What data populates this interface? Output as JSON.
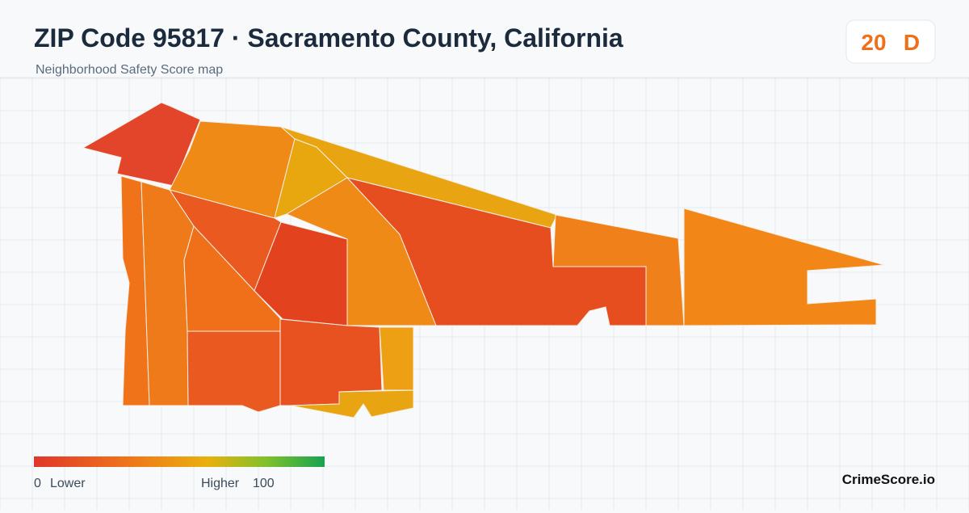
{
  "header": {
    "title": "ZIP Code 95817 · Sacramento County, California",
    "subtitle": "Neighborhood Safety Score map"
  },
  "score": {
    "value": 20,
    "grade": "D"
  },
  "legend": {
    "min": 0,
    "min_label": "Lower",
    "max_label": "Higher",
    "max": 100
  },
  "brand": "CrimeScore.io"
}
